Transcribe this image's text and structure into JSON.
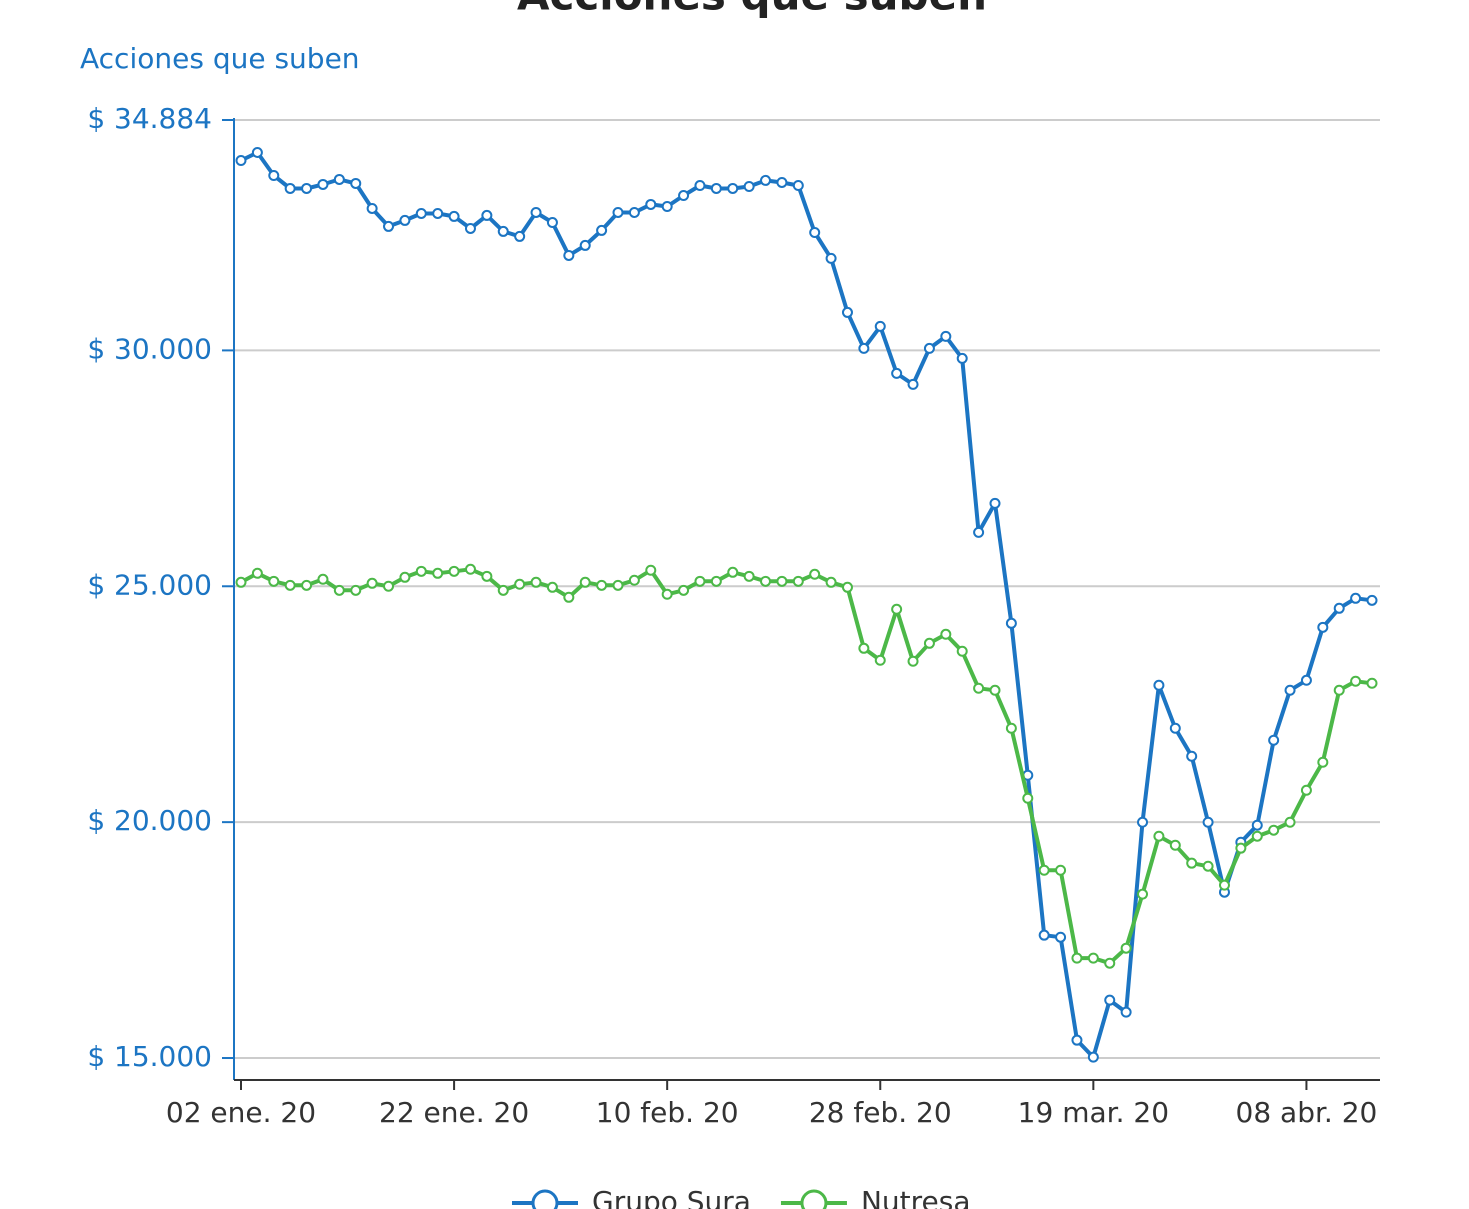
{
  "chart_data": {
    "type": "line",
    "title": "Acciones que suben",
    "y_axis_label": "Acciones que suben",
    "categories": [
      "02 ene. 20",
      null,
      null,
      null,
      null,
      null,
      null,
      null,
      null,
      null,
      null,
      null,
      null,
      "22 ene. 20",
      null,
      null,
      null,
      null,
      null,
      null,
      null,
      null,
      null,
      null,
      null,
      null,
      "10 feb. 20",
      null,
      null,
      null,
      null,
      null,
      null,
      null,
      null,
      null,
      null,
      null,
      null,
      "28 feb. 20",
      null,
      null,
      null,
      null,
      null,
      null,
      null,
      null,
      null,
      null,
      null,
      null,
      "19 mar. 20",
      null,
      null,
      null,
      null,
      null,
      null,
      null,
      null,
      null,
      null,
      null,
      null,
      "08 abr. 20",
      null,
      null,
      null,
      null
    ],
    "series": [
      {
        "name": "Grupo Sura",
        "color": "#1c75c3",
        "values": [
          34026,
          34196,
          33708,
          33433,
          33433,
          33518,
          33624,
          33539,
          33009,
          32628,
          32755,
          32903,
          32903,
          32840,
          32585,
          32861,
          32522,
          32416,
          32924,
          32712,
          32013,
          32225,
          32543,
          32924,
          32924,
          33094,
          33051,
          33284,
          33496,
          33433,
          33433,
          33475,
          33603,
          33560,
          33496,
          32500,
          31950,
          30805,
          30042,
          30509,
          29513,
          29280,
          30042,
          30297,
          29830,
          26143,
          26758,
          24215,
          20994,
          17604,
          17561,
          15378,
          15018,
          16226,
          15972,
          19998,
          22901,
          21990,
          21397,
          19998,
          18515,
          19575,
          19935,
          21736,
          22795,
          23007,
          24130,
          24533,
          24745,
          24702
        ]
      },
      {
        "name": "Nutresa",
        "color": "#4cb848",
        "values": [
          25084,
          25275,
          25105,
          25020,
          25020,
          25148,
          24914,
          24914,
          25063,
          25000,
          25190,
          25317,
          25275,
          25317,
          25360,
          25211,
          24914,
          25042,
          25084,
          24978,
          24766,
          25084,
          25020,
          25020,
          25127,
          25339,
          24830,
          24914,
          25105,
          25105,
          25296,
          25211,
          25105,
          25105,
          25105,
          25254,
          25084,
          24978,
          23685,
          23431,
          24512,
          23410,
          23791,
          23982,
          23622,
          22838,
          22795,
          21990,
          20507,
          18981,
          18981,
          17117,
          17117,
          17010,
          17328,
          18473,
          19702,
          19511,
          19130,
          19066,
          18664,
          19448,
          19702,
          19829,
          19998,
          20676,
          21270,
          22795,
          22986,
          22944
        ]
      }
    ],
    "ylim": [
      14534,
      34884
    ],
    "yticks": [
      {
        "value": 15000,
        "label": "$ 15.000"
      },
      {
        "value": 20000,
        "label": "$ 20.000"
      },
      {
        "value": 25000,
        "label": "$ 25.000"
      },
      {
        "value": 30000,
        "label": "$ 30.000"
      },
      {
        "value": 34884,
        "label": "$ 34.884"
      }
    ],
    "grid": true,
    "legend": "bottom",
    "axis_color": "#1c75c3"
  }
}
